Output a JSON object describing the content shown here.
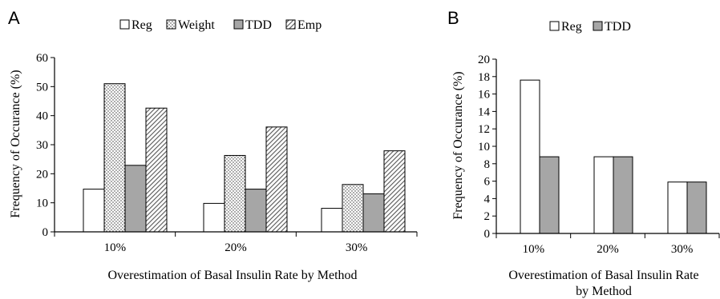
{
  "chart_data": [
    {
      "panel_label": "A",
      "type": "bar",
      "categories": [
        "10%",
        "20%",
        "30%"
      ],
      "series": [
        {
          "name": "Reg",
          "values": [
            14.7,
            9.8,
            8.1
          ],
          "pattern": "white"
        },
        {
          "name": "Weight",
          "values": [
            51.0,
            26.3,
            16.3
          ],
          "pattern": "dots"
        },
        {
          "name": "TDD",
          "values": [
            22.9,
            14.7,
            13.1
          ],
          "pattern": "gray"
        },
        {
          "name": "Emp",
          "values": [
            42.6,
            36.1,
            27.9
          ],
          "pattern": "diag"
        }
      ],
      "xlabel": "Overestimation of Basal Insulin Rate by Method",
      "ylabel": "Frequency of Occurance (%)",
      "ylim": [
        0,
        60
      ],
      "yticks": [
        "0",
        "10",
        "20",
        "30",
        "40",
        "50",
        "60"
      ],
      "legend_position": "top",
      "grid": false
    },
    {
      "panel_label": "B",
      "type": "bar",
      "categories": [
        "10%",
        "20%",
        "30%"
      ],
      "series": [
        {
          "name": "Reg",
          "values": [
            17.6,
            8.8,
            5.9
          ],
          "pattern": "white"
        },
        {
          "name": "TDD",
          "values": [
            8.8,
            8.8,
            5.9
          ],
          "pattern": "gray"
        }
      ],
      "xlabel_lines": [
        "Overestimation of Basal Insulin Rate",
        "by Method"
      ],
      "ylabel": "Frequency of Occurance (%)",
      "ylim": [
        0,
        20
      ],
      "yticks": [
        "0",
        "2",
        "4",
        "6",
        "8",
        "10",
        "12",
        "14",
        "16",
        "18",
        "20"
      ],
      "legend_position": "top",
      "grid": false
    }
  ],
  "colors": {
    "bar_outline": "#000000",
    "gray_fill": "#a6a6a6",
    "axis": "#000000"
  }
}
